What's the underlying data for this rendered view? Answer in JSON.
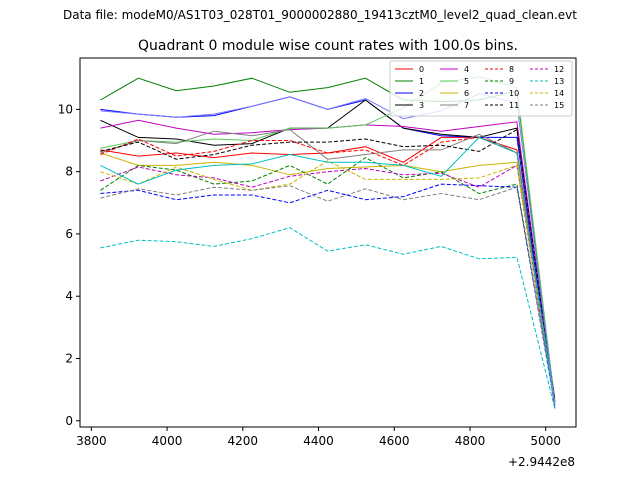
{
  "chart_data": {
    "type": "line",
    "suptitle": "Data file: modeM0/AS1T03_028T01_9000002880_19413cztM0_level2_quad_clean.evt",
    "title": "Quadrant 0 module wise count rates with 100.0s bins.",
    "xlabel": "",
    "ylabel": "",
    "x_offset_label": "+2.9442e8",
    "xlim": [
      3770,
      5080
    ],
    "ylim": [
      -0.2,
      11.65
    ],
    "x_ticks": [
      3800,
      4000,
      4200,
      4400,
      4600,
      4800,
      5000
    ],
    "x_tick_labels": [
      "3800",
      "4000",
      "4200",
      "4400",
      "4600",
      "4800",
      "5000"
    ],
    "y_ticks": [
      0,
      2,
      4,
      6,
      8,
      10
    ],
    "y_tick_labels": [
      "0",
      "2",
      "4",
      "6",
      "8",
      "10"
    ],
    "legend_position": "top-right",
    "x": [
      3824,
      3924,
      4024,
      4124,
      4224,
      4324,
      4424,
      4524,
      4624,
      4724,
      4824,
      4924,
      5024
    ],
    "series": [
      {
        "name": "0",
        "color": "#ff0000",
        "dash": "solid",
        "values": [
          8.7,
          8.5,
          8.6,
          8.45,
          8.6,
          8.55,
          8.6,
          8.8,
          8.3,
          9.1,
          9.1,
          8.7,
          0.6
        ]
      },
      {
        "name": "1",
        "color": "#008000",
        "dash": "solid",
        "values": [
          10.3,
          11.0,
          10.6,
          10.75,
          11.0,
          10.55,
          10.7,
          11.0,
          10.3,
          10.25,
          10.3,
          10.6,
          0.5
        ]
      },
      {
        "name": "2",
        "color": "#0000ff",
        "dash": "solid",
        "values": [
          10.0,
          9.85,
          9.75,
          9.8,
          10.1,
          10.4,
          10.0,
          10.3,
          9.4,
          9.15,
          9.1,
          9.1,
          0.4
        ]
      },
      {
        "name": "3",
        "color": "#000000",
        "dash": "solid",
        "values": [
          9.65,
          9.1,
          9.05,
          8.85,
          8.9,
          9.4,
          9.4,
          10.3,
          9.4,
          9.2,
          9.1,
          9.4,
          0.7
        ]
      },
      {
        "name": "4",
        "color": "#c000c0",
        "dash": "solid",
        "values": [
          9.4,
          9.65,
          9.4,
          9.2,
          9.25,
          9.35,
          9.4,
          9.5,
          9.45,
          9.3,
          9.45,
          9.6,
          0.5
        ]
      },
      {
        "name": "5",
        "color": "#55cc55",
        "dash": "solid",
        "values": [
          8.75,
          9.0,
          8.95,
          9.05,
          9.0,
          9.4,
          9.4,
          9.5,
          10.05,
          10.85,
          11.05,
          10.7,
          0.6
        ]
      },
      {
        "name": "6",
        "color": "#c8b400",
        "dash": "solid",
        "values": [
          8.6,
          8.2,
          8.2,
          8.3,
          8.2,
          7.9,
          8.1,
          8.15,
          8.2,
          8.0,
          8.2,
          8.3,
          0.6
        ]
      },
      {
        "name": "7",
        "color": "#808080",
        "dash": "solid",
        "values": [
          8.6,
          9.0,
          8.9,
          9.3,
          9.15,
          9.35,
          8.4,
          8.55,
          8.7,
          8.7,
          9.2,
          8.6,
          0.5
        ]
      },
      {
        "name": "8",
        "color": "#ff0000",
        "dash": "dashed",
        "values": [
          8.55,
          9.05,
          8.5,
          8.65,
          9.0,
          9.0,
          8.6,
          8.7,
          8.2,
          8.95,
          9.1,
          8.6,
          0.5
        ]
      },
      {
        "name": "9",
        "color": "#008000",
        "dash": "dashed",
        "values": [
          7.4,
          8.2,
          8.05,
          7.6,
          7.7,
          8.2,
          7.6,
          8.45,
          7.8,
          8.0,
          7.3,
          7.6,
          0.6
        ]
      },
      {
        "name": "10",
        "color": "#0000ff",
        "dash": "dashed",
        "values": [
          7.3,
          7.4,
          7.1,
          7.25,
          7.25,
          7.0,
          7.4,
          7.1,
          7.2,
          7.6,
          7.55,
          7.5,
          0.5
        ]
      },
      {
        "name": "11",
        "color": "#000000",
        "dash": "dashed",
        "values": [
          8.65,
          8.95,
          8.4,
          8.55,
          8.85,
          8.95,
          8.95,
          9.05,
          8.8,
          8.85,
          8.65,
          9.35,
          0.6
        ]
      },
      {
        "name": "12",
        "color": "#c000c0",
        "dash": "dashed",
        "values": [
          7.7,
          8.15,
          7.9,
          7.8,
          7.5,
          7.85,
          8.0,
          8.1,
          7.9,
          7.95,
          7.5,
          8.2,
          0.5
        ]
      },
      {
        "name": "13",
        "color": "#00bfbf",
        "dash": "dashed",
        "values": [
          5.55,
          5.8,
          5.75,
          5.6,
          5.85,
          6.2,
          5.45,
          5.65,
          5.35,
          5.6,
          5.2,
          5.25,
          0.4
        ]
      },
      {
        "name": "14",
        "color": "#c8b400",
        "dash": "dashed",
        "values": [
          8.0,
          7.6,
          8.15,
          7.75,
          7.4,
          7.6,
          8.35,
          7.75,
          7.75,
          7.75,
          7.8,
          8.2,
          0.5
        ]
      },
      {
        "name": "15",
        "color": "#808080",
        "dash": "dashed",
        "values": [
          7.15,
          7.45,
          7.25,
          7.5,
          7.4,
          7.55,
          7.05,
          7.45,
          7.1,
          7.3,
          7.1,
          7.5,
          0.6
        ]
      }
    ],
    "extra_series": [
      {
        "name": "_a",
        "color": "#00bfbf",
        "dash": "solid",
        "values": [
          8.2,
          7.6,
          8.05,
          8.2,
          8.25,
          8.55,
          8.3,
          8.3,
          8.2,
          7.85,
          9.1,
          8.6,
          0.5
        ]
      },
      {
        "name": "_b",
        "color": "#7777ff",
        "dash": "solid",
        "values": [
          9.95,
          9.85,
          9.75,
          9.85,
          10.1,
          10.4,
          10.0,
          10.35,
          9.7,
          9.95,
          10.5,
          10.2,
          0.5
        ]
      }
    ]
  }
}
